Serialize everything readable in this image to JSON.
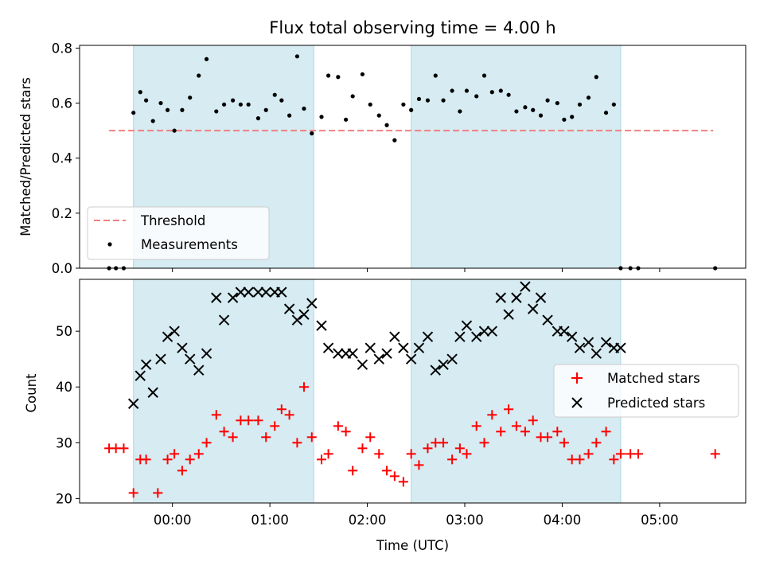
{
  "chart_data": [
    {
      "type": "scatter",
      "title": "Flux total observing time = 4.00 h",
      "xlabel": "",
      "ylabel": "Matched/Predicted stars",
      "xlim": [
        -0.953,
        5.883
      ],
      "ylim": [
        0,
        0.81
      ],
      "yticks": [
        0,
        0.2,
        0.4,
        0.6,
        0.8
      ],
      "ytick_labels": [
        "0.0",
        "0.2",
        "0.4",
        "0.6",
        "0.8"
      ],
      "shaded_spans": [
        [
          -0.4,
          1.45
        ],
        [
          2.45,
          4.6
        ]
      ],
      "legend": {
        "placement": "lower-left",
        "entries": [
          {
            "label": "Threshold",
            "color": "#f08080",
            "marker": "dashed-line"
          },
          {
            "label": "Measurements",
            "color": "#000000",
            "marker": "dot"
          }
        ]
      },
      "threshold": {
        "y": 0.5,
        "x_range": [
          -0.65,
          5.55
        ],
        "color": "#f08080"
      },
      "series": [
        {
          "name": "Measurements",
          "color": "#000000",
          "x": [
            -0.65,
            -0.58,
            -0.5,
            -0.4,
            -0.33,
            -0.27,
            -0.2,
            -0.12,
            -0.05,
            0.02,
            0.1,
            0.18,
            0.27,
            0.35,
            0.45,
            0.53,
            0.62,
            0.7,
            0.78,
            0.88,
            0.96,
            1.05,
            1.12,
            1.2,
            1.28,
            1.35,
            1.43,
            1.53,
            1.6,
            1.7,
            1.78,
            1.85,
            1.95,
            2.03,
            2.12,
            2.2,
            2.28,
            2.37,
            2.45,
            2.53,
            2.62,
            2.7,
            2.78,
            2.87,
            2.95,
            3.02,
            3.12,
            3.2,
            3.28,
            3.37,
            3.45,
            3.53,
            3.62,
            3.7,
            3.78,
            3.85,
            3.95,
            4.02,
            4.1,
            4.18,
            4.27,
            4.35,
            4.45,
            4.53,
            4.6,
            4.7,
            4.78,
            5.57
          ],
          "y": [
            0.0,
            0.0,
            0.0,
            0.565,
            0.64,
            0.61,
            0.535,
            0.6,
            0.575,
            0.5,
            0.575,
            0.62,
            0.7,
            0.76,
            0.57,
            0.595,
            0.61,
            0.595,
            0.595,
            0.545,
            0.575,
            0.63,
            0.61,
            0.555,
            0.77,
            0.58,
            0.49,
            0.55,
            0.7,
            0.695,
            0.54,
            0.625,
            0.705,
            0.595,
            0.555,
            0.52,
            0.465,
            0.595,
            0.575,
            0.615,
            0.61,
            0.7,
            0.61,
            0.645,
            0.57,
            0.645,
            0.625,
            0.7,
            0.64,
            0.645,
            0.63,
            0.57,
            0.585,
            0.575,
            0.555,
            0.61,
            0.6,
            0.54,
            0.55,
            0.595,
            0.62,
            0.695,
            0.565,
            0.595,
            0.0,
            0.0,
            0.0,
            0.0
          ]
        }
      ]
    },
    {
      "type": "scatter",
      "title": "",
      "xlabel": "Time (UTC)",
      "ylabel": "Count",
      "xlim": [
        -0.953,
        5.883
      ],
      "ylim": [
        19.2,
        59.3
      ],
      "xticks": [
        0,
        1,
        2,
        3,
        4,
        5
      ],
      "xtick_labels": [
        "00:00",
        "01:00",
        "02:00",
        "03:00",
        "04:00",
        "05:00"
      ],
      "yticks": [
        20,
        30,
        40,
        50
      ],
      "ytick_labels": [
        "20",
        "30",
        "40",
        "50"
      ],
      "shaded_spans": [
        [
          -0.4,
          1.45
        ],
        [
          2.45,
          4.6
        ]
      ],
      "legend": {
        "placement": "center-right",
        "entries": [
          {
            "label": "Matched stars",
            "color": "#ff0000",
            "marker": "plus"
          },
          {
            "label": "Predicted stars",
            "color": "#000000",
            "marker": "x"
          }
        ]
      },
      "series": [
        {
          "name": "Matched stars",
          "color": "#ff0000",
          "marker": "plus",
          "x": [
            -0.65,
            -0.58,
            -0.5,
            -0.4,
            -0.33,
            -0.27,
            -0.15,
            -0.05,
            0.02,
            0.1,
            0.18,
            0.27,
            0.35,
            0.45,
            0.53,
            0.62,
            0.7,
            0.78,
            0.88,
            0.96,
            1.05,
            1.12,
            1.2,
            1.28,
            1.35,
            1.43,
            1.53,
            1.6,
            1.7,
            1.78,
            1.85,
            1.95,
            2.03,
            2.12,
            2.2,
            2.28,
            2.37,
            2.45,
            2.53,
            2.62,
            2.7,
            2.78,
            2.87,
            2.95,
            3.02,
            3.12,
            3.2,
            3.28,
            3.37,
            3.45,
            3.53,
            3.62,
            3.7,
            3.78,
            3.85,
            3.95,
            4.02,
            4.1,
            4.18,
            4.27,
            4.35,
            4.45,
            4.53,
            4.6,
            4.7,
            4.78,
            5.57
          ],
          "y": [
            29,
            29,
            29,
            21,
            27,
            27,
            21,
            27,
            28,
            25,
            27,
            28,
            30,
            35,
            32,
            31,
            34,
            34,
            34,
            31,
            33,
            36,
            35,
            30,
            40,
            31,
            27,
            28,
            33,
            32,
            25,
            29,
            31,
            28,
            25,
            24,
            23,
            28,
            26,
            29,
            30,
            30,
            27,
            29,
            28,
            33,
            30,
            35,
            32,
            36,
            33,
            32,
            34,
            31,
            31,
            32,
            30,
            27,
            27,
            28,
            30,
            32,
            27,
            28,
            28,
            28,
            28
          ]
        },
        {
          "name": "Predicted stars",
          "color": "#000000",
          "marker": "x",
          "x": [
            -0.4,
            -0.33,
            -0.27,
            -0.2,
            -0.12,
            -0.05,
            0.02,
            0.1,
            0.18,
            0.27,
            0.35,
            0.45,
            0.53,
            0.62,
            0.7,
            0.78,
            0.88,
            0.96,
            1.05,
            1.12,
            1.2,
            1.28,
            1.35,
            1.43,
            1.53,
            1.6,
            1.7,
            1.78,
            1.85,
            1.95,
            2.03,
            2.12,
            2.2,
            2.28,
            2.37,
            2.45,
            2.53,
            2.62,
            2.7,
            2.78,
            2.87,
            2.95,
            3.02,
            3.12,
            3.2,
            3.28,
            3.37,
            3.45,
            3.53,
            3.62,
            3.7,
            3.78,
            3.85,
            3.95,
            4.02,
            4.1,
            4.18,
            4.27,
            4.35,
            4.45,
            4.53,
            4.6
          ],
          "y": [
            37,
            42,
            44,
            39,
            45,
            49,
            50,
            47,
            45,
            43,
            46,
            56,
            52,
            56,
            57,
            57,
            57,
            57,
            57,
            57,
            54,
            52,
            53,
            55,
            51,
            47,
            46,
            46,
            46,
            44,
            47,
            45,
            46,
            49,
            47,
            45,
            47,
            49,
            43,
            44,
            45,
            49,
            51,
            49,
            50,
            50,
            56,
            53,
            56,
            58,
            54,
            56,
            52,
            50,
            50,
            49,
            47,
            48,
            46,
            48,
            47,
            47
          ]
        }
      ]
    }
  ]
}
